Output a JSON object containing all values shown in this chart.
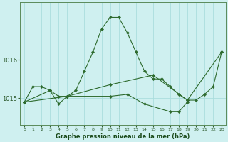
{
  "title": "Graphe pression niveau de la mer (hPa)",
  "background_color": "#cff0f0",
  "grid_color": "#aadddd",
  "line_color": "#2d6a2d",
  "x_labels": [
    "0",
    "1",
    "2",
    "3",
    "4",
    "5",
    "6",
    "7",
    "8",
    "9",
    "10",
    "11",
    "12",
    "13",
    "14",
    "15",
    "16",
    "17",
    "18",
    "19",
    "20",
    "21",
    "22",
    "23"
  ],
  "ylim": [
    1014.3,
    1017.5
  ],
  "yticks": [
    1015,
    1016
  ],
  "series": [
    {
      "points": [
        [
          0,
          1014.9
        ],
        [
          1,
          1015.3
        ],
        [
          2,
          1015.3
        ],
        [
          3,
          1015.2
        ],
        [
          4,
          1015.05
        ],
        [
          5,
          1015.05
        ],
        [
          6,
          1015.2
        ],
        [
          7,
          1015.7
        ],
        [
          8,
          1016.2
        ],
        [
          9,
          1016.8
        ],
        [
          10,
          1017.1
        ],
        [
          11,
          1017.1
        ],
        [
          12,
          1016.7
        ],
        [
          13,
          1016.2
        ],
        [
          14,
          1015.7
        ],
        [
          15,
          1015.5
        ],
        [
          16,
          1015.5
        ],
        [
          17,
          1015.3
        ],
        [
          18,
          1015.1
        ],
        [
          19,
          1014.95
        ],
        [
          20,
          1014.95
        ],
        [
          21,
          1015.1
        ],
        [
          22,
          1015.3
        ],
        [
          23,
          1016.2
        ]
      ]
    },
    {
      "points": [
        [
          0,
          1014.9
        ],
        [
          5,
          1015.05
        ],
        [
          10,
          1015.35
        ],
        [
          15,
          1015.6
        ],
        [
          19,
          1014.95
        ],
        [
          23,
          1016.2
        ]
      ]
    },
    {
      "points": [
        [
          0,
          1014.9
        ],
        [
          3,
          1015.2
        ],
        [
          4,
          1014.85
        ],
        [
          5,
          1015.05
        ],
        [
          10,
          1015.05
        ],
        [
          12,
          1015.1
        ],
        [
          14,
          1014.85
        ],
        [
          17,
          1014.65
        ],
        [
          18,
          1014.65
        ],
        [
          19,
          1014.9
        ]
      ]
    }
  ]
}
